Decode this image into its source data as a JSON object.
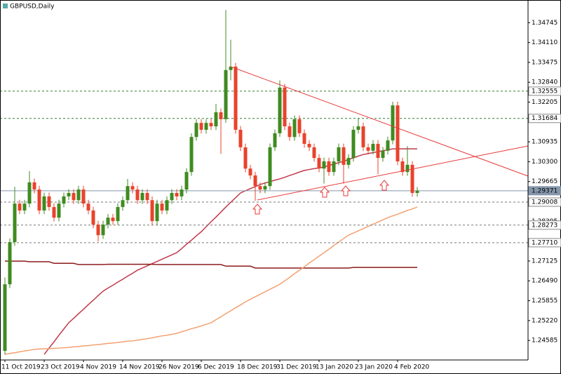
{
  "chart_data": {
    "type": "candlestick",
    "title": "GBPUSD,Daily",
    "categories": [
      "11 Oct 2019",
      null,
      null,
      null,
      null,
      null,
      null,
      null,
      "23 Oct 2019",
      null,
      null,
      null,
      null,
      null,
      null,
      null,
      "4 Nov 2019",
      null,
      null,
      null,
      null,
      null,
      null,
      null,
      "14 Nov 2019",
      null,
      null,
      null,
      null,
      null,
      null,
      null,
      "26 Nov 2019",
      null,
      null,
      null,
      null,
      null,
      null,
      null,
      "6 Dec 2019",
      null,
      null,
      null,
      null,
      null,
      null,
      null,
      "18 Dec 2019",
      null,
      null,
      null,
      null,
      null,
      null,
      null,
      "31 Dec 2019",
      null,
      null,
      null,
      null,
      null,
      null,
      null,
      "13 Jan 2020",
      null,
      null,
      null,
      null,
      null,
      null,
      null,
      "23 Jan 2020",
      null,
      null,
      null,
      null,
      null,
      null,
      null,
      "4 Feb 2020",
      null,
      null,
      null,
      null
    ],
    "open": [
      1.2425,
      1.2638,
      1.2773,
      1.2896,
      1.2874,
      1.2896,
      1.2964,
      1.2941,
      1.2874,
      1.2919,
      1.2885,
      1.2851,
      1.2896,
      1.2919,
      1.293,
      1.2907,
      1.2941,
      1.2896,
      1.2874,
      1.2829,
      1.2795,
      1.2829,
      1.2851,
      1.284,
      1.2885,
      1.2907,
      1.2952,
      1.2941,
      1.2907,
      1.293,
      1.2907,
      1.284,
      1.2896,
      1.2874,
      1.2907,
      1.293,
      1.2919,
      1.2941,
      1.2997,
      1.3109,
      1.3154,
      1.3132,
      1.3154,
      1.3143,
      1.3188,
      1.3166,
      1.3323,
      1.3334,
      1.3132,
      1.3076,
      1.3008,
      1.2986,
      1.2952,
      1.2941,
      1.2952,
      1.3076,
      1.3121,
      1.3267,
      1.3143,
      1.3109,
      1.3166,
      1.3121,
      1.3087,
      1.3076,
      1.3042,
      1.3008,
      1.3031,
      1.2997,
      1.3031,
      1.3076,
      1.302,
      1.3042,
      1.3132,
      1.3143,
      1.3076,
      1.3065,
      1.3087,
      1.3042,
      1.3065,
      1.3098,
      1.321,
      1.3031,
      1.2997,
      1.302,
      1.293
    ],
    "high": [
      1.266,
      1.2785,
      1.295,
      1.2908,
      1.2908,
      1.3,
      1.2976,
      1.2953,
      1.2931,
      1.2931,
      1.2897,
      1.2908,
      1.2931,
      1.2942,
      1.2942,
      1.2953,
      1.2953,
      1.2908,
      1.2886,
      1.2841,
      1.2841,
      1.2863,
      1.2863,
      1.2897,
      1.2919,
      1.2975,
      1.2964,
      1.2953,
      1.2942,
      1.2942,
      1.2919,
      1.2908,
      1.2908,
      1.2919,
      1.2942,
      1.2942,
      1.2953,
      1.3009,
      1.3121,
      1.3166,
      1.3166,
      1.3166,
      1.3166,
      1.3215,
      1.32,
      1.3515,
      1.342,
      1.3346,
      1.3144,
      1.3088,
      1.302,
      1.2998,
      1.2964,
      1.2964,
      1.3088,
      1.3133,
      1.329,
      1.3279,
      1.3155,
      1.3178,
      1.3178,
      1.3133,
      1.3099,
      1.3088,
      1.3054,
      1.3043,
      1.3043,
      1.3043,
      1.3088,
      1.3088,
      1.3054,
      1.3144,
      1.317,
      1.3155,
      1.3088,
      1.3099,
      1.3099,
      1.3077,
      1.311,
      1.3222,
      1.3222,
      1.3043,
      1.308,
      1.3032,
      1.2949
    ],
    "low": [
      1.2413,
      1.2626,
      1.2761,
      1.2862,
      1.2862,
      1.2884,
      1.2929,
      1.2862,
      1.2862,
      1.2873,
      1.2839,
      1.2839,
      1.2884,
      1.2907,
      1.2895,
      1.2895,
      1.2884,
      1.2862,
      1.2817,
      1.2775,
      1.2783,
      1.2817,
      1.2828,
      1.2828,
      1.2873,
      1.2895,
      1.2929,
      1.2895,
      1.2895,
      1.2895,
      1.2828,
      1.2828,
      1.2862,
      1.2862,
      1.2895,
      1.2907,
      1.2907,
      1.2929,
      1.2985,
      1.3097,
      1.312,
      1.312,
      1.3131,
      1.3131,
      1.3055,
      1.3154,
      1.329,
      1.312,
      1.3064,
      1.2996,
      1.2974,
      1.2905,
      1.2929,
      1.2929,
      1.294,
      1.3064,
      1.3109,
      1.3131,
      1.3097,
      1.3097,
      1.3109,
      1.3075,
      1.3064,
      1.303,
      1.2996,
      1.296,
      1.2985,
      1.2985,
      1.3019,
      1.296,
      1.3008,
      1.303,
      1.312,
      1.3064,
      1.3053,
      1.3053,
      1.299,
      1.303,
      1.3053,
      1.3086,
      1.3019,
      1.2985,
      1.2985,
      1.2918,
      1.2918
    ],
    "close": [
      1.2638,
      1.2773,
      1.2896,
      1.2874,
      1.2896,
      1.2964,
      1.2941,
      1.2874,
      1.2919,
      1.2885,
      1.2851,
      1.2896,
      1.2919,
      1.293,
      1.2907,
      1.2941,
      1.2896,
      1.2874,
      1.2829,
      1.2795,
      1.2829,
      1.2851,
      1.284,
      1.2885,
      1.2907,
      1.2952,
      1.2941,
      1.2907,
      1.293,
      1.2907,
      1.284,
      1.2896,
      1.2874,
      1.2907,
      1.293,
      1.2919,
      1.2941,
      1.2997,
      1.3109,
      1.3154,
      1.3132,
      1.3154,
      1.3143,
      1.3188,
      1.3166,
      1.3323,
      1.3334,
      1.3132,
      1.3076,
      1.3008,
      1.2986,
      1.2952,
      1.2941,
      1.2952,
      1.3076,
      1.3121,
      1.3267,
      1.3143,
      1.3109,
      1.3166,
      1.3121,
      1.3087,
      1.3076,
      1.3042,
      1.3008,
      1.3031,
      1.2997,
      1.3031,
      1.3076,
      1.302,
      1.3042,
      1.3132,
      1.3143,
      1.3076,
      1.3065,
      1.3087,
      1.3042,
      1.3065,
      1.3098,
      1.321,
      1.3031,
      1.2997,
      1.302,
      1.293,
      1.2937
    ],
    "up_color": "#3f8b20",
    "down_color": "#e8432c",
    "ylim": [
      1.2396,
      1.3547
    ],
    "yticks": [
      1.34745,
      {
        "value": 1.3411,
        "label": "1.34110"
      },
      1.33475,
      {
        "value": 1.3284,
        "label": "1.32840"
      },
      1.32205,
      1.30935,
      {
        "value": 1.303,
        "label": "1.30300"
      },
      1.29665,
      1.28395,
      1.27125,
      {
        "value": 1.2649,
        "label": "1.26490"
      },
      1.25855,
      {
        "value": 1.2522,
        "label": "1.25220"
      },
      1.24585
    ],
    "levels": [
      {
        "value": 1.32555,
        "color": "#2e7d32",
        "style": "dashed"
      },
      {
        "value": 1.31684,
        "color": "#2e7d32",
        "style": "dashed"
      },
      {
        "value": 1.29371,
        "color": "#8596ab",
        "style": "solid"
      },
      {
        "value": 1.29008,
        "color": "#777777",
        "style": "dashed"
      },
      {
        "value": 1.28273,
        "color": "#777777",
        "style": "dashed"
      },
      {
        "value": 1.2771,
        "label": "1.27710",
        "color": "#777777",
        "style": "dashed"
      }
    ],
    "overlays": [
      {
        "color": "#c0394a",
        "values": [
          null,
          null,
          null,
          null,
          null,
          null,
          null,
          null,
          1.2414,
          1.2434,
          1.2454,
          1.2475,
          1.2495,
          1.2515,
          1.2529,
          1.2544,
          1.2558,
          1.2573,
          1.2587,
          1.2602,
          1.2616,
          1.2626,
          1.2635,
          1.2645,
          1.2654,
          1.2664,
          1.2673,
          1.2683,
          1.269,
          1.2697,
          1.2704,
          1.2711,
          1.2718,
          1.2725,
          1.2732,
          1.2739,
          1.2752,
          1.2766,
          1.2779,
          1.2793,
          1.2806,
          1.2822,
          1.2838,
          1.2853,
          1.2869,
          1.2885,
          1.29,
          1.2915,
          1.293,
          1.2937,
          1.2944,
          1.295,
          1.2957,
          1.2962,
          1.2966,
          1.2971,
          1.2975,
          1.298,
          1.2986,
          1.2991,
          1.2997,
          1.3002,
          1.3005,
          1.3008,
          1.301,
          1.3013,
          1.3018,
          1.3022,
          1.3027,
          1.3031,
          1.3037,
          1.3042,
          1.3048,
          1.3053,
          1.3056,
          1.3059,
          1.3062,
          1.3065,
          1.3068,
          1.3071,
          1.3071,
          1.3071,
          1.3071,
          1.3071,
          1.3071
        ]
      },
      {
        "color": "#8b1a1a",
        "values": [
          1.2712,
          1.2712,
          1.2712,
          1.2712,
          1.2712,
          1.271,
          1.271,
          1.271,
          1.271,
          1.271,
          1.2705,
          1.2705,
          1.2705,
          1.2705,
          1.2705,
          1.2701,
          1.2701,
          1.2701,
          1.2701,
          1.2701,
          1.2701,
          1.2702,
          1.2702,
          1.2702,
          1.2702,
          1.2702,
          1.2702,
          1.2702,
          1.2702,
          1.2702,
          1.2702,
          1.2701,
          1.2701,
          1.2701,
          1.2701,
          1.2701,
          1.2701,
          1.2701,
          1.2701,
          1.2701,
          1.2701,
          1.2701,
          1.2701,
          1.2701,
          1.2701,
          1.2696,
          1.2696,
          1.2696,
          1.2696,
          1.2696,
          1.2696,
          1.269,
          1.269,
          1.269,
          1.269,
          1.269,
          1.269,
          1.269,
          1.269,
          1.269,
          1.269,
          1.269,
          1.269,
          1.269,
          1.269,
          1.269,
          1.269,
          1.269,
          1.269,
          1.269,
          1.269,
          1.2692,
          1.2692,
          1.2692,
          1.2692,
          1.2692,
          1.2692,
          1.2692,
          1.2692,
          1.2692,
          1.2692,
          1.2692,
          1.2692,
          1.2692,
          1.2692
        ]
      },
      {
        "color": "#f4a070",
        "values": [
          1.2414,
          1.2417,
          1.2419,
          1.2422,
          1.2425,
          1.2427,
          1.243,
          1.2431,
          1.2432,
          1.2432,
          1.2433,
          1.2434,
          1.2435,
          1.2436,
          1.2438,
          1.2439,
          1.2441,
          1.2442,
          1.2444,
          1.2445,
          1.2447,
          1.2449,
          1.245,
          1.2452,
          1.2454,
          1.2456,
          1.2457,
          1.2459,
          1.2462,
          1.2464,
          1.2467,
          1.247,
          1.2473,
          1.2475,
          1.2478,
          1.2481,
          1.2486,
          1.2491,
          1.2496,
          1.25,
          1.2505,
          1.251,
          1.2515,
          1.2525,
          1.2534,
          1.2544,
          1.2553,
          1.2563,
          1.2572,
          1.2582,
          1.259,
          1.2598,
          1.2606,
          1.2614,
          1.2622,
          1.263,
          1.2638,
          1.2649,
          1.266,
          1.2672,
          1.2683,
          1.2694,
          1.2706,
          1.2717,
          1.2728,
          1.2739,
          1.275,
          1.2762,
          1.2773,
          1.2784,
          1.2795,
          1.2802,
          1.2809,
          1.2816,
          1.2823,
          1.283,
          1.2837,
          1.2844,
          1.2851,
          1.2857,
          1.2862,
          1.2868,
          1.2874,
          1.2879,
          1.2885
        ]
      }
    ]
  }
}
